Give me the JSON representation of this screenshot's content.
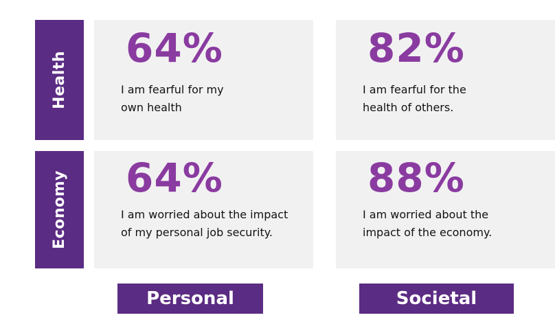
{
  "rows": {
    "health": "Health",
    "economy": "Economy"
  },
  "columns": {
    "personal": "Personal",
    "societal": "Societal"
  },
  "cells": {
    "health_personal": {
      "value": "64%",
      "line1": "I am fearful for my",
      "line2": "own health"
    },
    "health_societal": {
      "value": "82%",
      "line1": "I am fearful for the",
      "line2": "health of others."
    },
    "economy_personal": {
      "value": "64%",
      "line1": "I am worried about the impact",
      "line2": "of my personal job security."
    },
    "economy_societal": {
      "value": "88%",
      "line1": "I am worried about the",
      "line2": "impact of the economy."
    }
  },
  "colors": {
    "label_background": "#5b2c83",
    "percent_text": "#8a3ba0",
    "card_background": "#f1f1f1"
  }
}
